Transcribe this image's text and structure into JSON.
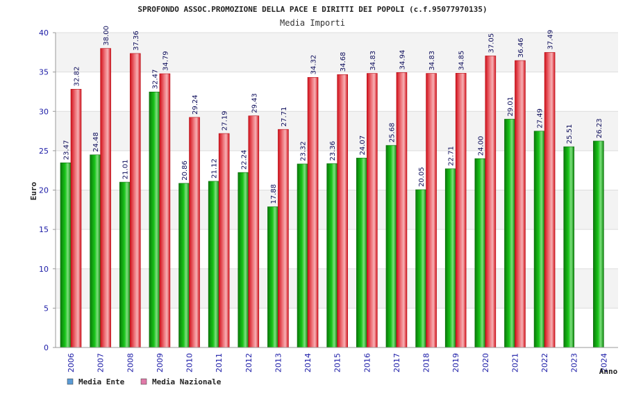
{
  "chart_data": {
    "type": "bar",
    "title": "SPROFONDO ASSOC.PROMOZIONE DELLA PACE E DIRITTI DEI POPOLI (c.f.95077970135)",
    "subtitle": "Media Importi",
    "xlabel": "Anno",
    "ylabel": "Euro",
    "ylim": [
      0,
      40
    ],
    "yticks": [
      0,
      5,
      10,
      15,
      20,
      25,
      30,
      35,
      40
    ],
    "categories": [
      "2006",
      "2007",
      "2008",
      "2009",
      "2010",
      "2011",
      "2012",
      "2013",
      "2014",
      "2015",
      "2016",
      "2017",
      "2018",
      "2019",
      "2020",
      "2021",
      "2022",
      "2023",
      "2024"
    ],
    "series": [
      {
        "name": "Media Ente",
        "color": "#1fae1f",
        "legend_color": "#5b9bd5",
        "values": [
          23.47,
          24.48,
          21.01,
          32.47,
          20.86,
          21.12,
          22.24,
          17.88,
          23.32,
          23.36,
          24.07,
          25.68,
          20.05,
          22.71,
          24.0,
          29.01,
          27.49,
          25.51,
          26.23
        ],
        "labels": [
          "23.47",
          "24.48",
          "21.01",
          "32.47",
          "20.86",
          "21.12",
          "22.24",
          "17.88",
          "23.32",
          "23.36",
          "24.07",
          "25.68",
          "20.05",
          "22.71",
          "24.00",
          "29.01",
          "27.49",
          "25.51",
          "26.23"
        ]
      },
      {
        "name": "Media Nazionale",
        "color": "#e8303a",
        "legend_color": "#e07aa8",
        "values": [
          32.82,
          38.0,
          37.36,
          34.79,
          29.24,
          27.19,
          29.43,
          27.71,
          34.32,
          34.68,
          34.83,
          34.94,
          34.83,
          34.85,
          37.05,
          36.46,
          37.49,
          null,
          null
        ],
        "labels": [
          "32.82",
          "38.00",
          "37.36",
          "34.79",
          "29.24",
          "27.19",
          "29.43",
          "27.71",
          "34.32",
          "34.68",
          "34.83",
          "34.94",
          "34.83",
          "34.85",
          "37.05",
          "36.46",
          "37.49",
          null,
          null
        ]
      }
    ],
    "grid": true,
    "legend_position": "bottom-left"
  }
}
